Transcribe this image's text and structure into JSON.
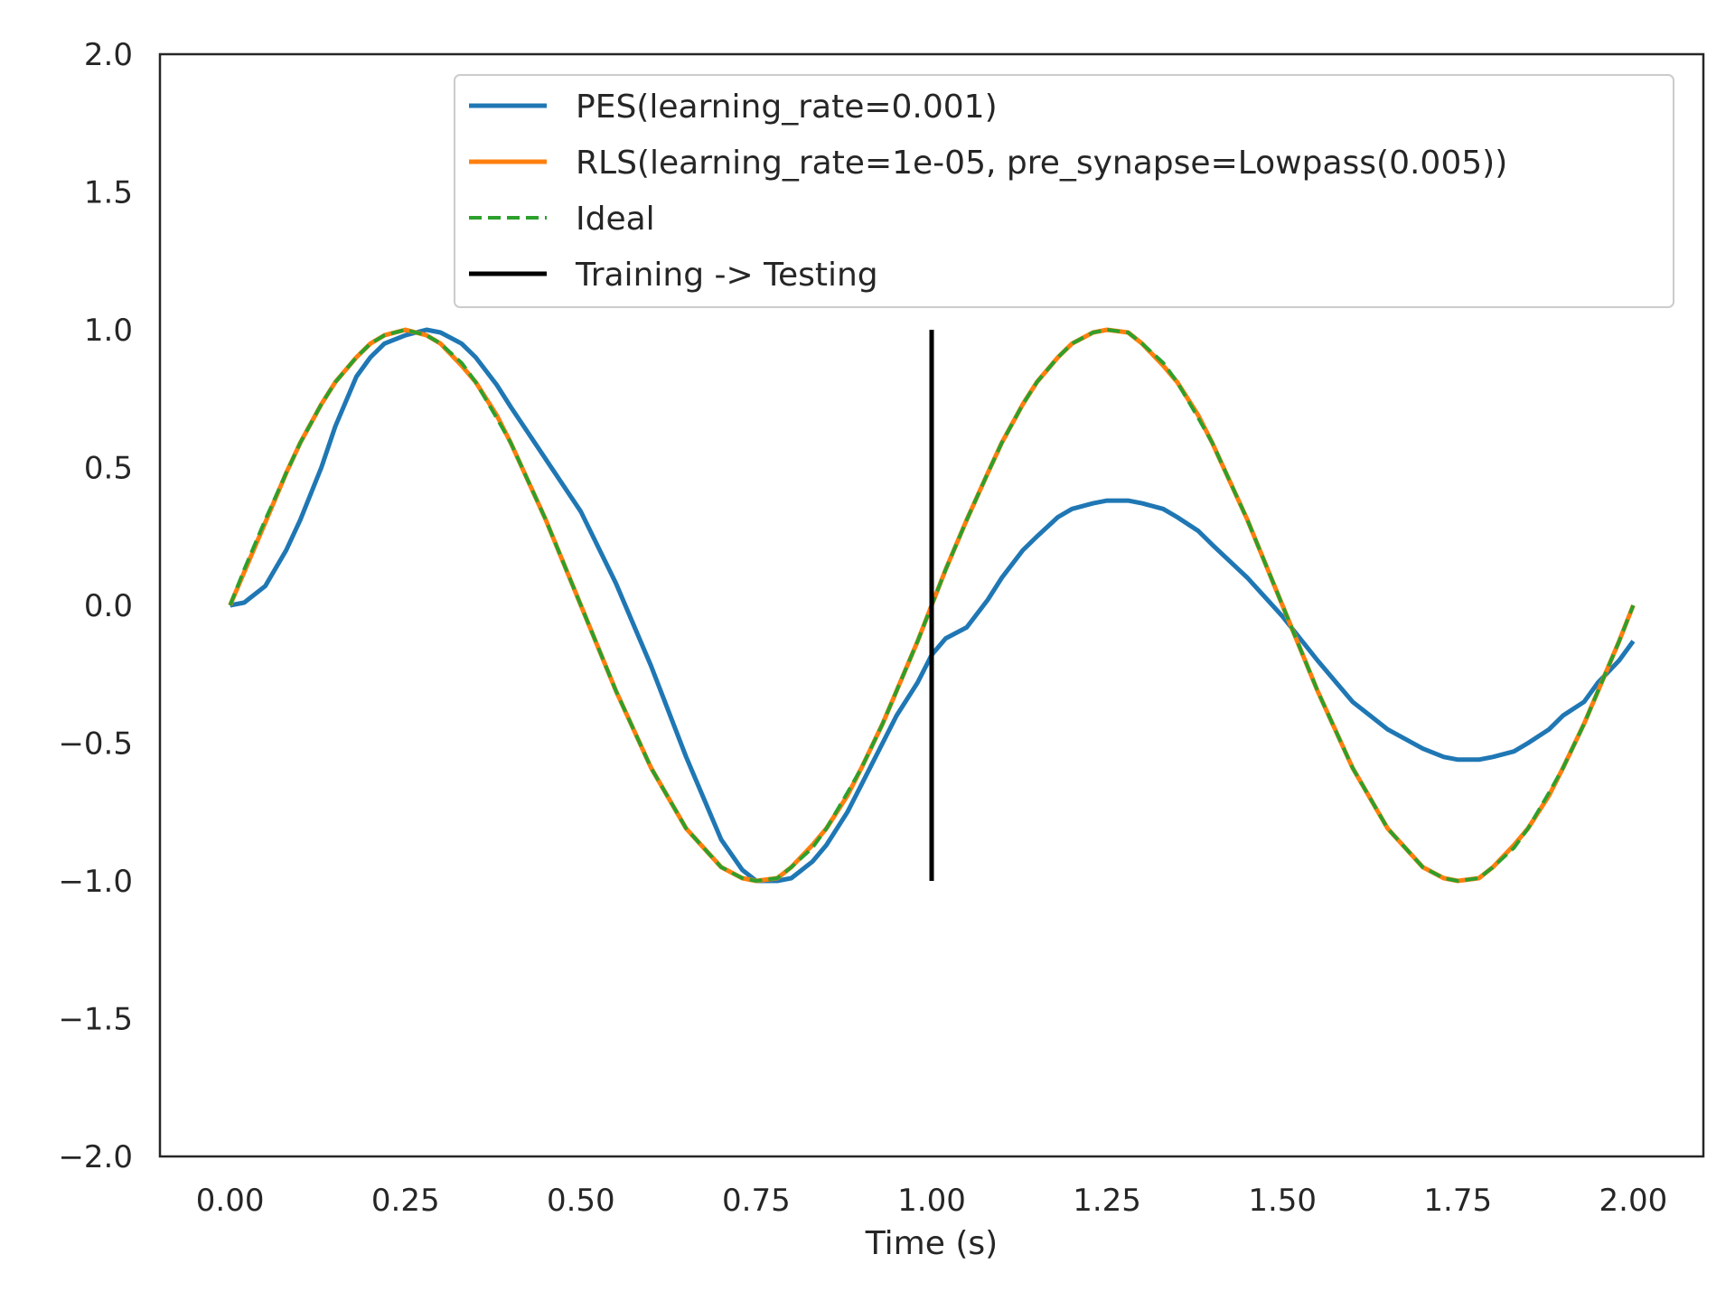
{
  "chart_data": {
    "type": "line",
    "title": "",
    "xlabel": "Time (s)",
    "ylabel": "",
    "xlim": [
      -0.1,
      2.1
    ],
    "ylim": [
      -2.0,
      2.0
    ],
    "x_ticks": [
      0.0,
      0.25,
      0.5,
      0.75,
      1.0,
      1.25,
      1.5,
      1.75,
      2.0
    ],
    "x_tick_labels": [
      "0.00",
      "0.25",
      "0.50",
      "0.75",
      "1.00",
      "1.25",
      "1.50",
      "1.75",
      "2.00"
    ],
    "y_ticks": [
      2.0,
      1.5,
      1.0,
      0.5,
      0.0,
      -0.5,
      -1.0,
      -1.5,
      -2.0
    ],
    "y_tick_labels": [
      "2.0",
      "1.5",
      "1.0",
      "0.5",
      "0.0",
      "−0.5",
      "−1.0",
      "−1.5",
      "−2.0"
    ],
    "grid": false,
    "legend_position": "upper-right",
    "series": [
      {
        "name": "PES(learning_rate=0.001)",
        "color": "#1f77b4",
        "style": "solid",
        "x": [
          0.0,
          0.02,
          0.05,
          0.08,
          0.1,
          0.13,
          0.15,
          0.18,
          0.2,
          0.22,
          0.25,
          0.28,
          0.3,
          0.33,
          0.35,
          0.38,
          0.4,
          0.45,
          0.5,
          0.55,
          0.6,
          0.65,
          0.7,
          0.73,
          0.75,
          0.78,
          0.8,
          0.83,
          0.85,
          0.88,
          0.9,
          0.93,
          0.95,
          0.98,
          1.0,
          1.02,
          1.05,
          1.08,
          1.1,
          1.13,
          1.15,
          1.18,
          1.2,
          1.23,
          1.25,
          1.28,
          1.3,
          1.33,
          1.35,
          1.38,
          1.4,
          1.45,
          1.5,
          1.55,
          1.6,
          1.65,
          1.7,
          1.73,
          1.75,
          1.78,
          1.8,
          1.83,
          1.85,
          1.88,
          1.9,
          1.93,
          1.95,
          1.98,
          2.0
        ],
        "y": [
          0.0,
          0.01,
          0.07,
          0.2,
          0.31,
          0.5,
          0.65,
          0.83,
          0.9,
          0.95,
          0.98,
          1.0,
          0.99,
          0.95,
          0.9,
          0.8,
          0.72,
          0.53,
          0.34,
          0.08,
          -0.22,
          -0.55,
          -0.85,
          -0.96,
          -1.0,
          -1.0,
          -0.99,
          -0.93,
          -0.87,
          -0.75,
          -0.65,
          -0.5,
          -0.4,
          -0.28,
          -0.18,
          -0.12,
          -0.08,
          0.02,
          0.1,
          0.2,
          0.25,
          0.32,
          0.35,
          0.37,
          0.38,
          0.38,
          0.37,
          0.35,
          0.32,
          0.27,
          0.22,
          0.1,
          -0.04,
          -0.2,
          -0.35,
          -0.45,
          -0.52,
          -0.55,
          -0.56,
          -0.56,
          -0.55,
          -0.53,
          -0.5,
          -0.45,
          -0.4,
          -0.35,
          -0.28,
          -0.2,
          -0.13
        ]
      },
      {
        "name": "RLS(learning_rate=1e-05, pre_synapse=Lowpass(0.005))",
        "color": "#ff7f0e",
        "style": "solid",
        "x": [
          0.0,
          0.02,
          0.05,
          0.08,
          0.1,
          0.13,
          0.15,
          0.18,
          0.2,
          0.22,
          0.25,
          0.28,
          0.3,
          0.33,
          0.35,
          0.38,
          0.4,
          0.45,
          0.5,
          0.55,
          0.6,
          0.65,
          0.7,
          0.73,
          0.75,
          0.78,
          0.8,
          0.83,
          0.85,
          0.88,
          0.9,
          0.93,
          0.95,
          0.98,
          1.0,
          1.02,
          1.05,
          1.08,
          1.1,
          1.13,
          1.15,
          1.18,
          1.2,
          1.23,
          1.25,
          1.28,
          1.3,
          1.33,
          1.35,
          1.38,
          1.4,
          1.45,
          1.5,
          1.55,
          1.6,
          1.65,
          1.7,
          1.73,
          1.75,
          1.78,
          1.8,
          1.83,
          1.85,
          1.88,
          1.9,
          1.93,
          1.95,
          1.98,
          2.0
        ],
        "y": [
          0.0,
          0.12,
          0.3,
          0.48,
          0.59,
          0.73,
          0.81,
          0.9,
          0.95,
          0.98,
          1.0,
          0.98,
          0.95,
          0.87,
          0.81,
          0.69,
          0.59,
          0.31,
          0.0,
          -0.31,
          -0.59,
          -0.81,
          -0.95,
          -0.99,
          -1.0,
          -0.99,
          -0.95,
          -0.87,
          -0.81,
          -0.69,
          -0.59,
          -0.43,
          -0.31,
          -0.13,
          0.0,
          0.13,
          0.31,
          0.48,
          0.59,
          0.73,
          0.81,
          0.9,
          0.95,
          0.99,
          1.0,
          0.99,
          0.95,
          0.87,
          0.81,
          0.69,
          0.59,
          0.31,
          0.0,
          -0.31,
          -0.59,
          -0.81,
          -0.95,
          -0.99,
          -1.0,
          -0.99,
          -0.95,
          -0.87,
          -0.81,
          -0.69,
          -0.59,
          -0.43,
          -0.31,
          -0.13,
          0.0
        ]
      },
      {
        "name": "Ideal",
        "color": "#2ca02c",
        "style": "dashed",
        "x": [
          0.0,
          0.02,
          0.05,
          0.08,
          0.1,
          0.13,
          0.15,
          0.18,
          0.2,
          0.22,
          0.25,
          0.28,
          0.3,
          0.33,
          0.35,
          0.38,
          0.4,
          0.45,
          0.5,
          0.55,
          0.6,
          0.65,
          0.7,
          0.73,
          0.75,
          0.78,
          0.8,
          0.83,
          0.85,
          0.88,
          0.9,
          0.93,
          0.95,
          0.98,
          1.0,
          1.02,
          1.05,
          1.08,
          1.1,
          1.13,
          1.15,
          1.18,
          1.2,
          1.23,
          1.25,
          1.28,
          1.3,
          1.33,
          1.35,
          1.38,
          1.4,
          1.45,
          1.5,
          1.55,
          1.6,
          1.65,
          1.7,
          1.73,
          1.75,
          1.78,
          1.8,
          1.83,
          1.85,
          1.88,
          1.9,
          1.93,
          1.95,
          1.98,
          2.0
        ],
        "y": [
          0.0,
          0.13,
          0.31,
          0.48,
          0.59,
          0.73,
          0.81,
          0.9,
          0.95,
          0.98,
          1.0,
          0.98,
          0.95,
          0.88,
          0.81,
          0.68,
          0.59,
          0.31,
          0.0,
          -0.31,
          -0.59,
          -0.81,
          -0.95,
          -0.99,
          -1.0,
          -0.99,
          -0.95,
          -0.88,
          -0.81,
          -0.68,
          -0.59,
          -0.43,
          -0.31,
          -0.13,
          0.0,
          0.13,
          0.31,
          0.48,
          0.59,
          0.73,
          0.81,
          0.9,
          0.95,
          0.99,
          1.0,
          0.99,
          0.95,
          0.88,
          0.81,
          0.68,
          0.59,
          0.31,
          0.0,
          -0.31,
          -0.59,
          -0.81,
          -0.95,
          -0.99,
          -1.0,
          -0.99,
          -0.95,
          -0.88,
          -0.81,
          -0.68,
          -0.59,
          -0.43,
          -0.31,
          -0.13,
          0.0
        ]
      },
      {
        "name": "Training -> Testing",
        "color": "#000000",
        "style": "solid",
        "x": [
          1.0,
          1.0
        ],
        "y": [
          -1.0,
          1.0
        ]
      }
    ]
  }
}
